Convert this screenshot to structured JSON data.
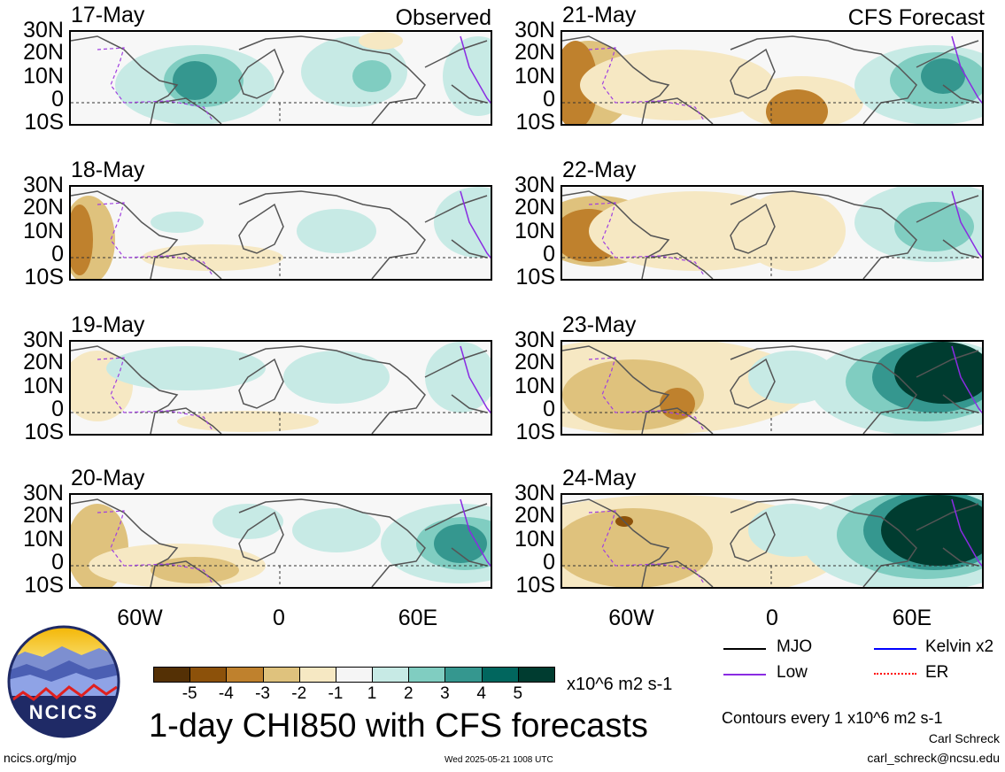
{
  "lat_labels": [
    "30N",
    "20N",
    "10N",
    "0",
    "10S"
  ],
  "lon_labels": [
    "60W",
    "0",
    "60E"
  ],
  "left_column_label": "Observed",
  "right_column_label": "CFS Forecast",
  "panels_left": [
    {
      "date": "17-May"
    },
    {
      "date": "18-May"
    },
    {
      "date": "19-May"
    },
    {
      "date": "20-May"
    }
  ],
  "panels_right": [
    {
      "date": "21-May"
    },
    {
      "date": "22-May"
    },
    {
      "date": "23-May"
    },
    {
      "date": "24-May"
    }
  ],
  "colorbar": {
    "ticks": [
      "-5",
      "-4",
      "-3",
      "-2",
      "-1",
      "1",
      "2",
      "3",
      "4",
      "5"
    ],
    "colors": [
      "#543005",
      "#8c510a",
      "#bf812d",
      "#dfc27d",
      "#f6e8c3",
      "#f5f5f5",
      "#c7eae5",
      "#80cdc1",
      "#35978f",
      "#01665e",
      "#003c30"
    ],
    "units": "x10^6 m2 s-1"
  },
  "legend": [
    {
      "label": "MJO",
      "color": "#000000"
    },
    {
      "label": "Kelvin x2",
      "color": "#0000ff"
    },
    {
      "label": "Low",
      "color": "#8a2be2"
    },
    {
      "label": "ER",
      "color": "#ff0000"
    }
  ],
  "logo": {
    "text": "NCICS"
  },
  "title": "1-day CHI850 with CFS forecasts",
  "contours_note": "Contours every 1 x10^6 m2 s-1",
  "author": "Carl Schreck",
  "email": "carl_schreck@ncsu.edu",
  "url": "ncics.org/mjo",
  "timestamp": "Wed 2025-05-21 1008 UTC"
}
